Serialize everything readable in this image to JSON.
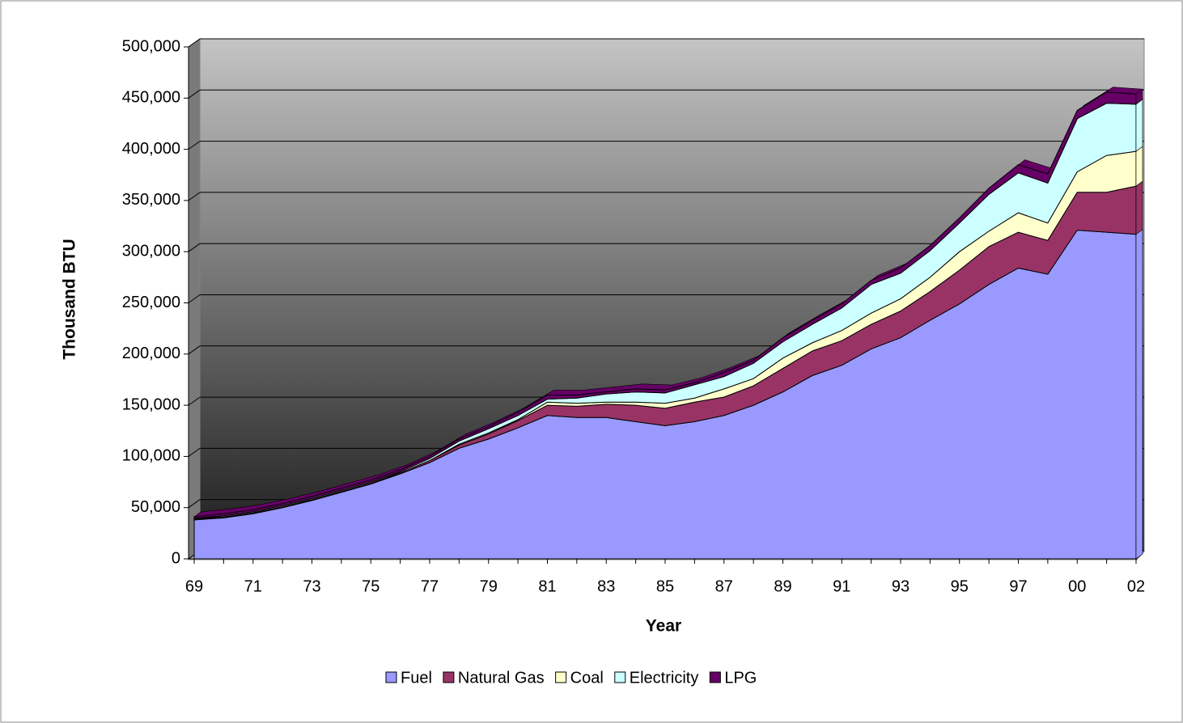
{
  "chart_data": {
    "type": "area",
    "stacked": true,
    "x_label": "Year",
    "y_label": "Thousand BTU",
    "categories": [
      "69",
      null,
      "71",
      null,
      "73",
      null,
      "75",
      null,
      "77",
      null,
      "79",
      null,
      "81",
      null,
      "83",
      null,
      "85",
      null,
      "87",
      null,
      "89",
      null,
      "91",
      null,
      "93",
      null,
      "95",
      null,
      "97",
      null,
      "00",
      null,
      "02"
    ],
    "ylim": [
      0,
      500000
    ],
    "yticks": [
      0,
      {
        "value": 50000,
        "label": "50,000"
      },
      {
        "value": 100000,
        "label": "100,000"
      },
      {
        "value": 150000,
        "label": "150,000"
      },
      {
        "value": 200000,
        "label": "200,000"
      },
      {
        "value": 250000,
        "label": "250,000"
      },
      {
        "value": 300000,
        "label": "300,000"
      },
      {
        "value": 350000,
        "label": "350,000"
      },
      {
        "value": 400000,
        "label": "400,000"
      },
      {
        "value": 450000,
        "label": "450,000"
      },
      {
        "value": 500000,
        "label": "500,000"
      }
    ],
    "grid": true,
    "legend": "bottom",
    "series": [
      {
        "name": "Fuel",
        "color": "#9999ff",
        "values": [
          38000,
          40000,
          44000,
          50000,
          57000,
          65000,
          73000,
          83000,
          94000,
          108000,
          117000,
          128000,
          140000,
          138000,
          138000,
          134000,
          130000,
          134000,
          140000,
          150000,
          163000,
          179000,
          189000,
          205000,
          216000,
          233000,
          249000,
          268000,
          284000,
          278000,
          321000,
          319000,
          317000
        ]
      },
      {
        "name": "Natural Gas",
        "color": "#993366",
        "values": [
          1000,
          1000,
          1000,
          1000,
          1000,
          1000,
          1000,
          1000,
          2000,
          3000,
          5000,
          7000,
          10000,
          11000,
          13000,
          16000,
          17000,
          19000,
          18000,
          19000,
          23000,
          24000,
          24000,
          24000,
          26000,
          28000,
          33000,
          37000,
          35000,
          33000,
          37000,
          39000,
          47000
        ]
      },
      {
        "name": "Coal",
        "color": "#ffffcc",
        "values": [
          0,
          0,
          0,
          0,
          0,
          0,
          0,
          0,
          0,
          1000,
          1000,
          1000,
          3000,
          3000,
          2000,
          3000,
          5000,
          4000,
          8000,
          7000,
          10000,
          8000,
          10000,
          11000,
          12000,
          14000,
          18000,
          15000,
          19000,
          17000,
          20000,
          36000,
          34000
        ]
      },
      {
        "name": "Electricity",
        "color": "#ccffff",
        "values": [
          500,
          1000,
          1000,
          1000,
          1000,
          1000,
          1000,
          1000,
          2000,
          3000,
          4000,
          4000,
          3000,
          5000,
          8000,
          10000,
          10000,
          13000,
          12000,
          15000,
          16000,
          18000,
          22000,
          28000,
          25000,
          26000,
          28000,
          36000,
          39000,
          39000,
          52000,
          51000,
          46000
        ]
      },
      {
        "name": "LPG",
        "color": "#660066",
        "values": [
          1500,
          2000,
          2000,
          2000,
          2000,
          2000,
          2000,
          2000,
          2000,
          2000,
          2000,
          3000,
          4000,
          3000,
          2000,
          3000,
          3000,
          2000,
          4000,
          3000,
          4000,
          4000,
          4000,
          4000,
          5000,
          5000,
          5000,
          6000,
          8000,
          9000,
          8000,
          11000,
          10000
        ]
      }
    ]
  }
}
